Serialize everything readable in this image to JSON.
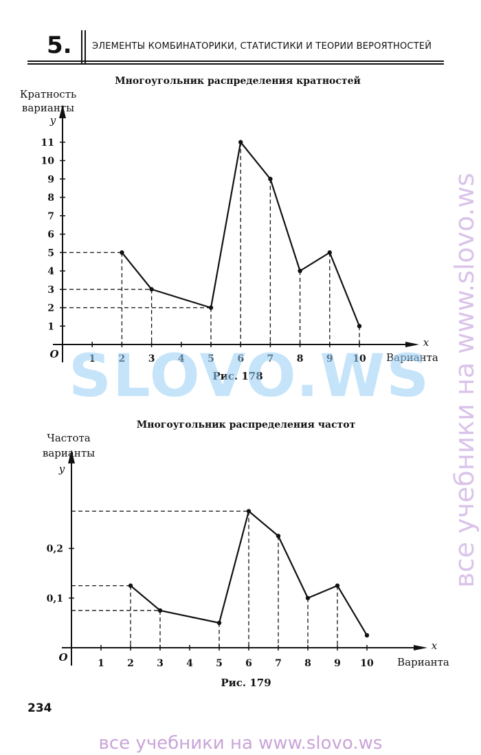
{
  "header": {
    "chapter_number": "5.",
    "chapter_title": "ЭЛЕМЕНТЫ КОМБИНАТОРИКИ, СТАТИСТИКИ И ТЕОРИИ ВЕРОЯТНОСТЕЙ"
  },
  "page_number": "234",
  "watermarks": {
    "center": "SLOVO.WS",
    "side": "все учебники на www.slovo.ws",
    "bottom": "все учебники на www.slovo.ws"
  },
  "chart_data": [
    {
      "type": "line",
      "title": "Многоугольник распределения кратностей",
      "ylabel_lines": [
        "Кратность",
        "варианты"
      ],
      "y_axis_letter": "y",
      "x_axis_letter": "x",
      "xlabel": "Варианта",
      "origin_label": "O",
      "caption": "Рис. 178",
      "x_ticks": [
        1,
        2,
        3,
        4,
        5,
        6,
        7,
        8,
        9,
        10
      ],
      "y_ticks": [
        {
          "value": 1,
          "label": "1"
        },
        {
          "value": 2,
          "label": "2"
        },
        {
          "value": 3,
          "label": "3"
        },
        {
          "value": 4,
          "label": "4"
        },
        {
          "value": 5,
          "label": "5"
        },
        {
          "value": 6,
          "label": "6"
        },
        {
          "value": 7,
          "label": "7"
        },
        {
          "value": 8,
          "label": "8"
        },
        {
          "value": 9,
          "label": "9"
        },
        {
          "value": 10,
          "label": "10"
        },
        {
          "value": 11,
          "label": "11"
        }
      ],
      "xlim": [
        0,
        11.5
      ],
      "ylim": [
        0,
        12
      ],
      "x": [
        2,
        3,
        5,
        6,
        7,
        8,
        9,
        10
      ],
      "y": [
        5,
        3,
        2,
        11,
        9,
        4,
        5,
        1
      ],
      "dashed_horizontal_to_points": [
        0,
        1,
        2
      ],
      "dashed_vertical_from_points": [
        0,
        1,
        2,
        3,
        4,
        5,
        6,
        7
      ]
    },
    {
      "type": "line",
      "title": "Многоугольник распределения частот",
      "ylabel_lines": [
        "Частота",
        "варианты"
      ],
      "y_axis_letter": "y",
      "x_axis_letter": "x",
      "xlabel": "Варианта",
      "origin_label": "O",
      "caption": "Рис. 179",
      "x_ticks": [
        1,
        2,
        3,
        4,
        5,
        6,
        7,
        8,
        9,
        10
      ],
      "y_ticks": [
        {
          "value": 0.1,
          "label": "0,1"
        },
        {
          "value": 0.2,
          "label": "0,2"
        }
      ],
      "xlim": [
        0,
        11.5
      ],
      "ylim": [
        0,
        0.36
      ],
      "x": [
        2,
        3,
        5,
        6,
        7,
        8,
        9,
        10
      ],
      "y": [
        0.125,
        0.075,
        0.05,
        0.275,
        0.225,
        0.1,
        0.125,
        0.025
      ],
      "dashed_horizontal_to_points": [
        0,
        1,
        3
      ],
      "dashed_vertical_from_points": [
        0,
        1,
        2,
        3,
        4,
        5,
        6
      ]
    }
  ]
}
